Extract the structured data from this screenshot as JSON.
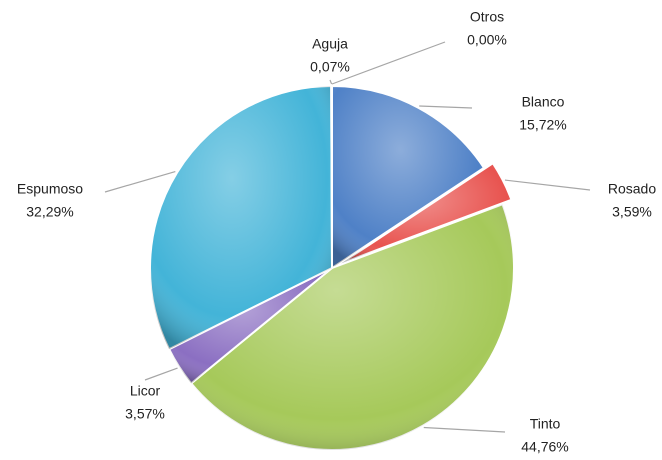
{
  "chart_data": {
    "type": "pie",
    "categories": [
      "Blanco",
      "Rosado",
      "Tinto",
      "Licor",
      "Espumoso",
      "Aguja",
      "Otros"
    ],
    "values": [
      15.72,
      3.59,
      44.76,
      3.57,
      32.29,
      0.07,
      0.0
    ],
    "value_labels": [
      "15,72%",
      "3,59%",
      "44,76%",
      "3,57%",
      "32,29%",
      "0,07%",
      "0,00%"
    ],
    "colors": [
      "#4f81c7",
      "#e8534f",
      "#a6c95a",
      "#8b6fc2",
      "#43b4d8",
      "#2d6e8a",
      "#9a9a9a"
    ]
  }
}
